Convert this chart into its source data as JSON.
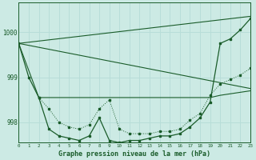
{
  "title": "Graphe pression niveau de la mer (hPa)",
  "bg_color": "#cceae4",
  "grid_color": "#b8ddd8",
  "line_color": "#1a5c2a",
  "xlim": [
    0,
    23
  ],
  "ylim": [
    997.55,
    1000.65
  ],
  "yticks": [
    998,
    999,
    1000
  ],
  "xticks": [
    0,
    1,
    2,
    3,
    4,
    5,
    6,
    7,
    8,
    9,
    10,
    11,
    12,
    13,
    14,
    15,
    16,
    17,
    18,
    19,
    20,
    21,
    22,
    23
  ],
  "series_straight_down": {
    "x": [
      0,
      23
    ],
    "y": [
      999.75,
      998.75
    ]
  },
  "series_straight_up": {
    "x": [
      0,
      23
    ],
    "y": [
      999.75,
      1000.35
    ]
  },
  "series_flat": {
    "x": [
      0,
      2,
      3,
      19,
      20,
      23
    ],
    "y": [
      999.75,
      998.55,
      998.55,
      998.55,
      998.6,
      998.7
    ]
  },
  "series_dotted": {
    "x": [
      2,
      3,
      4,
      5,
      6,
      7,
      8,
      9,
      10,
      11,
      12,
      13,
      14,
      15,
      16,
      17,
      18,
      19,
      20,
      21,
      22,
      23
    ],
    "y": [
      998.55,
      998.3,
      998.0,
      997.9,
      997.85,
      997.95,
      998.3,
      998.5,
      997.85,
      997.75,
      997.75,
      997.75,
      997.8,
      997.8,
      997.85,
      998.05,
      998.2,
      998.6,
      998.85,
      998.95,
      999.05,
      999.2
    ]
  },
  "series_main": {
    "x": [
      0,
      1,
      2,
      3,
      4,
      5,
      6,
      7,
      8,
      9,
      10,
      11,
      12,
      13,
      14,
      15,
      16,
      17,
      18,
      19,
      20,
      21,
      22,
      23
    ],
    "y": [
      999.75,
      999.0,
      998.55,
      997.85,
      997.7,
      997.65,
      997.6,
      997.7,
      998.1,
      997.6,
      997.55,
      997.6,
      997.6,
      997.65,
      997.7,
      997.7,
      997.75,
      997.9,
      998.1,
      998.45,
      999.75,
      999.85,
      1000.05,
      1000.3
    ]
  }
}
